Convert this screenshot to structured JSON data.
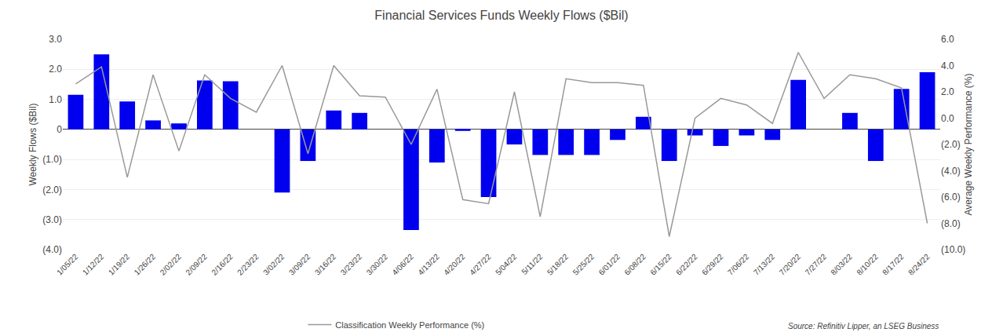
{
  "chart_data": {
    "type": "bar",
    "title": "Financial Services Funds Weekly Flows ($Bil)",
    "ylabel": "Weekly Flows ($Bil)",
    "y2label": "Average Weekly Performance (%)",
    "source": "Source: Refinitiv Lipper, an LSEG Business",
    "categories": [
      "1/05/22",
      "1/12/22",
      "1/19/22",
      "1/26/22",
      "2/02/22",
      "2/09/22",
      "2/16/22",
      "2/23/22",
      "3/02/22",
      "3/09/22",
      "3/16/22",
      "3/23/22",
      "3/30/22",
      "4/06/22",
      "4/13/22",
      "4/20/22",
      "4/27/22",
      "5/04/22",
      "5/11/22",
      "5/18/22",
      "5/25/22",
      "6/01/22",
      "6/08/22",
      "6/15/22",
      "6/22/22",
      "6/29/22",
      "7/06/22",
      "7/13/22",
      "7/20/22",
      "7/27/22",
      "8/03/22",
      "8/10/22",
      "8/17/22",
      "8/24/22"
    ],
    "series": [
      {
        "type": "bar",
        "color": "#0000EE",
        "values": [
          1.15,
          2.5,
          0.93,
          0.3,
          0.2,
          1.63,
          1.6,
          0.0,
          -2.1,
          -1.05,
          0.63,
          0.55,
          0.0,
          -3.35,
          -1.1,
          -0.05,
          -2.25,
          -0.5,
          -0.85,
          -0.85,
          -0.85,
          -0.35,
          0.42,
          -1.05,
          -0.2,
          -0.55,
          -0.2,
          -0.35,
          1.65,
          0.0,
          0.55,
          -1.05,
          1.35,
          1.9
        ]
      },
      {
        "type": "line",
        "name": "Classification Weekly Performance (%)",
        "color": "#999999",
        "axis": "y2",
        "values": [
          2.6,
          3.9,
          -4.5,
          3.3,
          -2.5,
          3.3,
          1.5,
          0.45,
          4.0,
          -2.7,
          4.0,
          1.7,
          1.6,
          -2.0,
          2.2,
          -6.2,
          -6.5,
          2.0,
          -7.5,
          3.0,
          2.7,
          2.7,
          2.5,
          -9.0,
          0.0,
          1.5,
          1.0,
          -0.4,
          5.0,
          1.5,
          3.3,
          3.0,
          2.3,
          -8.0
        ]
      }
    ],
    "ylim": [
      -4.0,
      3.0
    ],
    "yticks": [
      {
        "value": -4.0,
        "label": "(4.0)"
      },
      {
        "value": -3.0,
        "label": "(3.0)"
      },
      {
        "value": -2.0,
        "label": "(2.0)"
      },
      {
        "value": -1.0,
        "label": "(1.0)"
      },
      0,
      {
        "value": 1.0,
        "label": "1.0"
      },
      {
        "value": 2.0,
        "label": "2.0"
      },
      {
        "value": 3.0,
        "label": "3.0"
      }
    ],
    "y2lim": [
      -10.0,
      6.0
    ],
    "y2ticks": [
      {
        "value": -10.0,
        "label": "(10.0)"
      },
      {
        "value": -8.0,
        "label": "(8.0)"
      },
      {
        "value": -6.0,
        "label": "(6.0)"
      },
      {
        "value": -4.0,
        "label": "(4.0)"
      },
      {
        "value": -2.0,
        "label": "(2.0)"
      },
      {
        "value": 0.0,
        "label": "0.0"
      },
      {
        "value": 2.0,
        "label": "2.0"
      },
      {
        "value": 4.0,
        "label": "4.0"
      },
      {
        "value": 6.0,
        "label": "6.0"
      }
    ],
    "grid": true,
    "legend": "bottom"
  }
}
